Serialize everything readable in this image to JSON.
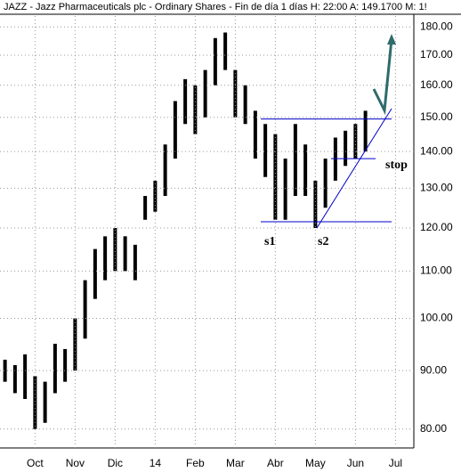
{
  "chart_data": {
    "type": "bar-range",
    "title": "JAZZ - Jazz Pharmaceuticals plc - Ordinary Shares - Fin de día 1 días  H: 22:00  A: 149.1700  M: 1!",
    "categories": [
      null,
      null,
      null,
      "Oct",
      null,
      null,
      null,
      "Nov",
      null,
      null,
      null,
      "Dic",
      null,
      null,
      null,
      "14",
      null,
      null,
      null,
      "Feb",
      null,
      null,
      null,
      "Mar",
      null,
      null,
      null,
      "Abr",
      null,
      null,
      null,
      "May",
      null,
      null,
      null,
      "Jun",
      null,
      null,
      null,
      "Jul"
    ],
    "high": [
      92,
      91,
      93,
      89,
      88,
      95,
      94,
      100,
      108,
      115,
      118,
      120,
      118,
      116,
      128,
      132,
      142,
      155,
      162,
      160,
      165,
      176,
      178,
      165,
      160,
      152,
      148,
      145,
      138,
      148,
      142,
      132,
      138,
      144,
      146,
      148,
      152,
      null,
      null,
      null
    ],
    "low": [
      88,
      86,
      85,
      80,
      81,
      86,
      88,
      90,
      96,
      104,
      108,
      110,
      110,
      108,
      122,
      124,
      128,
      138,
      148,
      145,
      150,
      160,
      165,
      150,
      148,
      138,
      133,
      122,
      122,
      128,
      128,
      120,
      125,
      132,
      136,
      138,
      140,
      null,
      null,
      null
    ],
    "color": "#000000",
    "log_scale": true,
    "ylim": [
      77,
      184
    ],
    "yticks": [
      {
        "value": 80,
        "label": "80.00"
      },
      {
        "value": 90,
        "label": "90.00"
      },
      {
        "value": 100,
        "label": "100.00"
      },
      {
        "value": 110,
        "label": "110.00"
      },
      {
        "value": 120,
        "label": "120.00"
      },
      {
        "value": 130,
        "label": "130.00"
      },
      {
        "value": 140,
        "label": "140.00"
      },
      {
        "value": 150,
        "label": "150.00"
      },
      {
        "value": 160,
        "label": "160.00"
      },
      {
        "value": 170,
        "label": "170.00"
      },
      {
        "value": 180,
        "label": "180.00"
      }
    ],
    "grid": true,
    "levels": [
      149.5,
      121.5,
      138
    ],
    "level_color": "#0000cc",
    "annotations": [
      "s1",
      "s2",
      "stop"
    ]
  }
}
